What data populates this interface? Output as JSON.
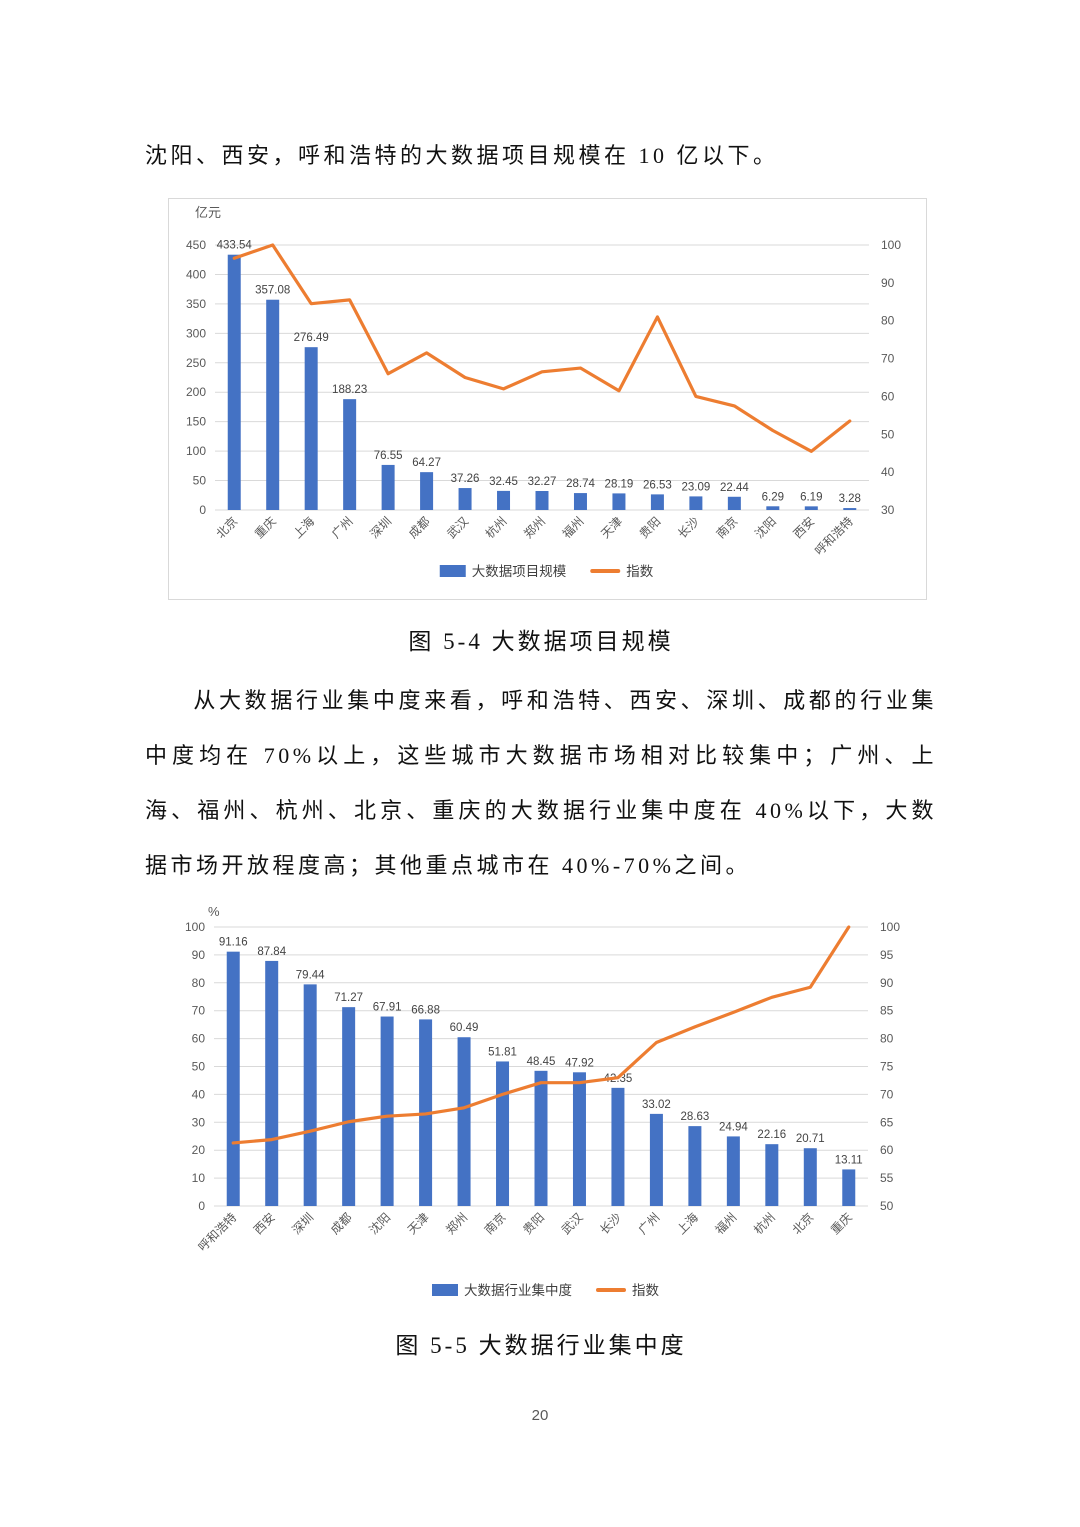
{
  "body": {
    "intro_line": "沈阳、西安，呼和浩特的大数据项目规模在 10 亿以下。",
    "paragraph": "从大数据行业集中度来看，呼和浩特、西安、深圳、成都的行业集中度均在 70%以上，这些城市大数据市场相对比较集中；广州、上海、福州、杭州、北京、重庆的大数据行业集中度在 40%以下，大数据市场开放程度高；其他重点城市在 40%-70%之间。"
  },
  "figures": [
    {
      "caption": "图 5-4 大数据项目规模"
    },
    {
      "caption": "图 5-5 大数据行业集中度"
    }
  ],
  "footer": {
    "page_number": "20"
  },
  "colors": {
    "bar": "#4472C4",
    "line": "#ED7D31",
    "grid": "#D9D9D9",
    "axis_text": "#595959",
    "data_label": "#444444"
  },
  "chart_data": [
    {
      "type": "combo",
      "title": "图 5-4 大数据项目规模",
      "unit_label": "亿元",
      "categories": [
        "北京",
        "重庆",
        "上海",
        "广州",
        "深圳",
        "成都",
        "武汉",
        "杭州",
        "郑州",
        "福州",
        "天津",
        "贵阳",
        "长沙",
        "南京",
        "沈阳",
        "西安",
        "呼和浩特"
      ],
      "series": [
        {
          "name": "大数据项目规模",
          "kind": "bar",
          "axis": "left",
          "color": "#4472C4",
          "values": [
            433.54,
            357.08,
            276.49,
            188.23,
            76.55,
            64.27,
            37.26,
            32.45,
            32.27,
            28.74,
            28.19,
            26.53,
            23.09,
            22.44,
            6.29,
            6.19,
            3.28
          ]
        },
        {
          "name": "指数",
          "kind": "line",
          "axis": "right",
          "color": "#ED7D31",
          "values": [
            96.5,
            100,
            84.5,
            85.5,
            66,
            71.5,
            65,
            62,
            66.5,
            67.5,
            61.5,
            81,
            60,
            57.5,
            51,
            45.5,
            53.5
          ]
        }
      ],
      "left_axis": {
        "min": 0,
        "max": 450,
        "step": 50
      },
      "right_axis": {
        "min": 30,
        "max": 100,
        "step": 10
      },
      "data_labels": true,
      "grid": true,
      "legend_position": "bottom",
      "legend": [
        "大数据项目规模",
        "指数"
      ]
    },
    {
      "type": "combo",
      "title": "图 5-5 大数据行业集中度",
      "unit_label": "%",
      "categories": [
        "呼和浩特",
        "西安",
        "深圳",
        "成都",
        "沈阳",
        "天津",
        "郑州",
        "南京",
        "贵阳",
        "武汉",
        "长沙",
        "广州",
        "上海",
        "福州",
        "杭州",
        "北京",
        "重庆"
      ],
      "series": [
        {
          "name": "大数据行业集中度",
          "kind": "bar",
          "axis": "left",
          "color": "#4472C4",
          "values": [
            91.16,
            87.84,
            79.44,
            71.27,
            67.91,
            66.88,
            60.49,
            51.81,
            48.45,
            47.92,
            42.35,
            33.02,
            28.63,
            24.94,
            22.16,
            20.71,
            13.11
          ]
        },
        {
          "name": "指数",
          "kind": "line",
          "axis": "right",
          "color": "#ED7D31",
          "values": [
            61.3,
            61.9,
            63.4,
            65.1,
            66.1,
            66.5,
            67.6,
            70,
            72.1,
            72.1,
            73,
            79.3,
            82.1,
            84.7,
            87.4,
            89.2,
            100
          ]
        }
      ],
      "left_axis": {
        "min": 0,
        "max": 100,
        "step": 10
      },
      "right_axis": {
        "min": 50,
        "max": 100,
        "step": 5
      },
      "data_labels": true,
      "grid": true,
      "legend_position": "bottom",
      "legend": [
        "大数据行业集中度",
        "指数"
      ]
    }
  ]
}
